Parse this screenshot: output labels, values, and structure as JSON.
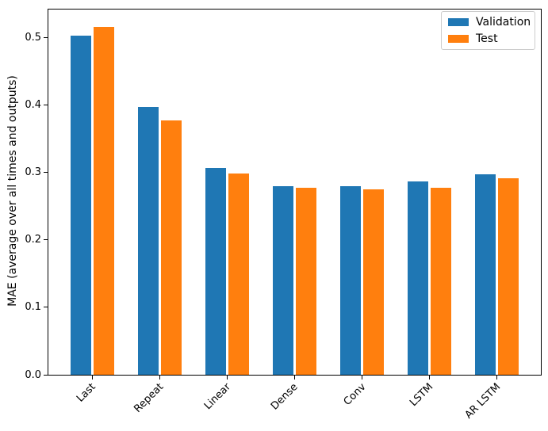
{
  "figure": {
    "ylabel": "MAE (average over all times and outputs)"
  },
  "legend": {
    "items": [
      {
        "label": "Validation",
        "color": "#1f77b4"
      },
      {
        "label": "Test",
        "color": "#ff7f0e"
      }
    ]
  },
  "chart_data": {
    "type": "bar",
    "categories": [
      "Last",
      "Repeat",
      "Linear",
      "Dense",
      "Conv",
      "LSTM",
      "AR LSTM"
    ],
    "series": [
      {
        "name": "Validation",
        "color": "#1f77b4",
        "values": [
          0.503,
          0.397,
          0.307,
          0.28,
          0.28,
          0.287,
          0.298
        ]
      },
      {
        "name": "Test",
        "color": "#ff7f0e",
        "values": [
          0.516,
          0.378,
          0.299,
          0.277,
          0.275,
          0.277,
          0.292
        ]
      }
    ],
    "title": "",
    "xlabel": "",
    "ylabel": "MAE (average over all times and outputs)",
    "ylim": [
      0,
      0.542
    ],
    "yticks": [
      0.0,
      0.1,
      0.2,
      0.3,
      0.4,
      0.5
    ],
    "bar_width": 0.3,
    "group_offset": 0.17,
    "xlim": [
      -0.652,
      6.652
    ],
    "grid": false,
    "legend_position": "upper right",
    "xtick_rotation": 45
  }
}
